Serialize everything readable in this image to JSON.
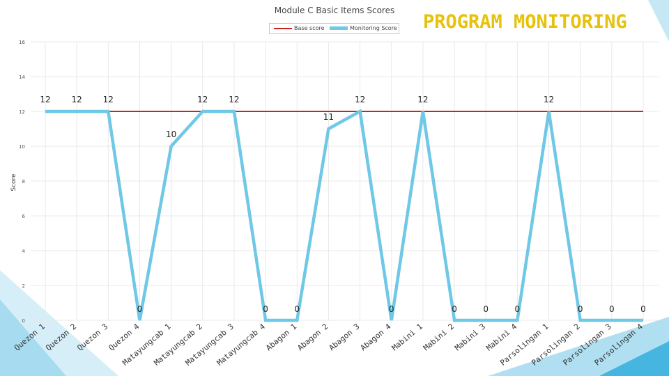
{
  "banner": "PROGRAM MONITORING",
  "colors": {
    "banner": "#e6c20c",
    "base_line": "#cc2222",
    "monitoring_line": "#6ec8e6",
    "grid": "#e8e8e8",
    "decoration": "#1aa3d8"
  },
  "chart_data": {
    "type": "line",
    "title": "Module C Basic Items Scores",
    "ylabel": "Score",
    "xlabel": "",
    "ylim": [
      0,
      16
    ],
    "yticks": [
      0,
      2,
      4,
      6,
      8,
      10,
      12,
      14,
      16
    ],
    "grid": true,
    "legend_position": "top-center",
    "categories": [
      "Quezon 1",
      "Quezon 2",
      "Quezon 3",
      "Quezon 4",
      "Matayungcab 1",
      "Matayungcab 2",
      "Matayungcab 3",
      "Matayungcab 4",
      "Abagon 1",
      "Abagon 2",
      "Abagon 3",
      "Abagon 4",
      "Mabini 1",
      "Mabini 2",
      "Mabini 3",
      "Mabini 4",
      "Parsolingan 1",
      "Parsolingan 2",
      "Parsolingan 3",
      "Parsolingan 4"
    ],
    "series": [
      {
        "name": "Base score",
        "values": [
          12,
          12,
          12,
          12,
          12,
          12,
          12,
          12,
          12,
          12,
          12,
          12,
          12,
          12,
          12,
          12,
          12,
          12,
          12,
          12
        ],
        "labels": false
      },
      {
        "name": "Monitoring Score",
        "values": [
          12,
          12,
          12,
          0,
          10,
          12,
          12,
          0,
          0,
          11,
          12,
          0,
          12,
          0,
          0,
          0,
          12,
          0,
          0,
          0
        ],
        "labels": true
      }
    ]
  }
}
